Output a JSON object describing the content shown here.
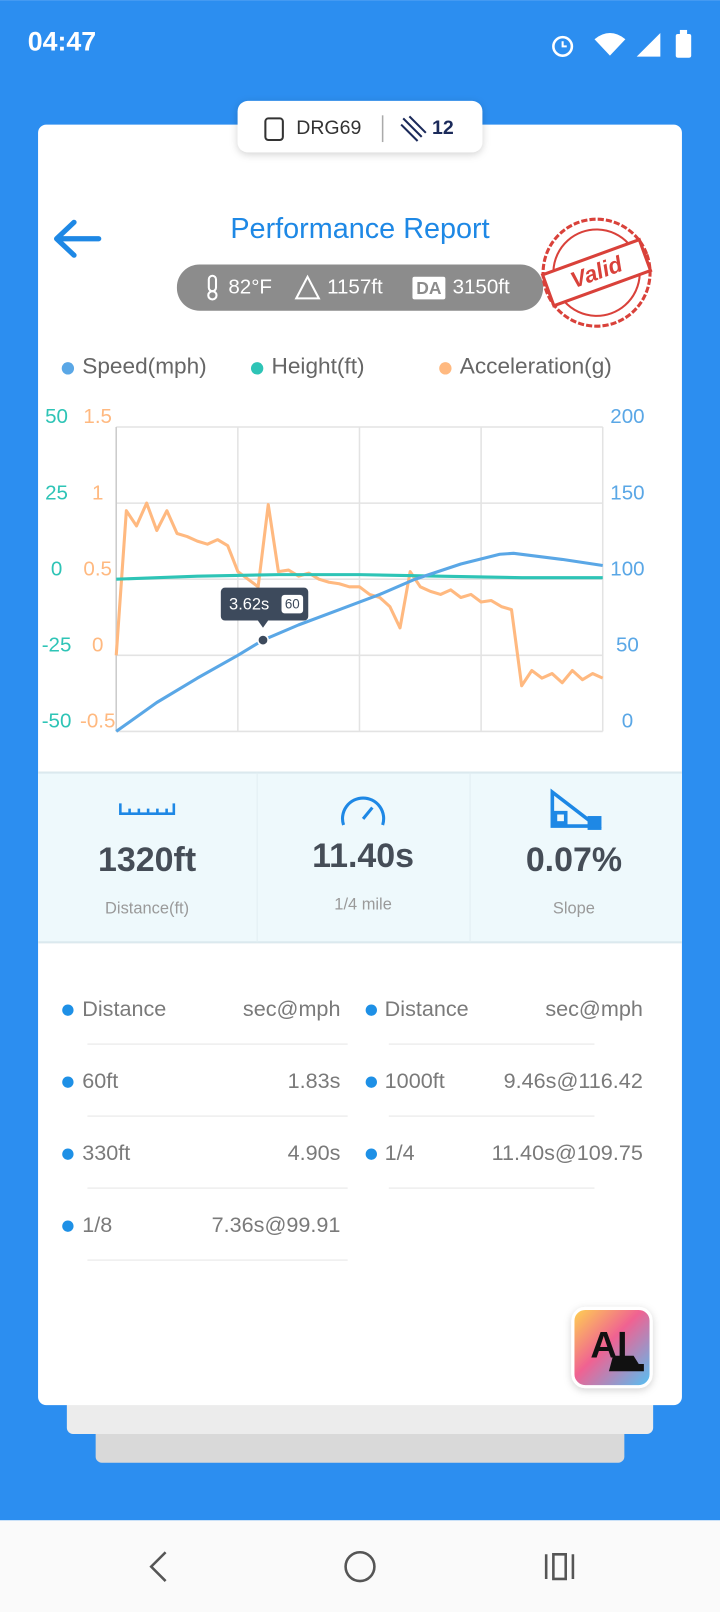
{
  "status_bar": {
    "time": "04:47"
  },
  "device": {
    "name": "DRG69",
    "satellites": 12
  },
  "header": {
    "title": "Performance Report",
    "stamp": "Valid"
  },
  "conditions": {
    "temperature": "82°F",
    "altitude": "1157ft",
    "da_label": "DA",
    "density_altitude": "3150ft"
  },
  "chart_data": {
    "type": "line",
    "xlim": [
      0,
      12
    ],
    "ylim": [
      -50,
      50
    ],
    "yticks": [
      -50,
      -25,
      0,
      25,
      50
    ],
    "y2lim": [
      0,
      200
    ],
    "y2ticks": [
      0,
      50,
      100,
      150,
      200
    ],
    "y3lim": [
      -0.5,
      1.5
    ],
    "y3ticks": [
      -0.5,
      0,
      0.5,
      1,
      1.5
    ],
    "grid": true,
    "series": [
      {
        "name": "Speed(mph)",
        "color": "#5aa7e6",
        "axis": "y2",
        "x": [
          0,
          1,
          2,
          3,
          3.62,
          4.5,
          5.5,
          6.5,
          7.36,
          8.5,
          9.46,
          9.8,
          11,
          12
        ],
        "values": [
          0,
          19,
          35,
          50,
          60,
          70,
          80,
          90,
          99.9,
          110,
          116.4,
          117,
          113,
          109
        ]
      },
      {
        "name": "Height(ft)",
        "color": "#2ec4b6",
        "x": [
          0,
          2,
          4,
          6,
          8,
          10,
          12
        ],
        "values": [
          0,
          1,
          1.5,
          1.5,
          1,
          0.5,
          0.5
        ]
      },
      {
        "name": "Acceleration(g)",
        "color": "#ffb980",
        "axis": "y3",
        "x": [
          0,
          0.25,
          0.5,
          0.75,
          1,
          1.25,
          1.5,
          1.75,
          2,
          2.25,
          2.5,
          2.75,
          3,
          3.25,
          3.5,
          3.75,
          4,
          4.25,
          4.5,
          4.75,
          5,
          5.25,
          5.5,
          5.75,
          6,
          6.25,
          6.5,
          6.75,
          7,
          7.25,
          7.5,
          7.75,
          8,
          8.25,
          8.5,
          8.75,
          9,
          9.25,
          9.5,
          9.75,
          10,
          10.25,
          10.5,
          10.75,
          11,
          11.25,
          11.5,
          11.75,
          12
        ],
        "values": [
          0,
          0.95,
          0.85,
          1.0,
          0.82,
          0.95,
          0.8,
          0.78,
          0.75,
          0.73,
          0.76,
          0.72,
          0.55,
          0.5,
          0.45,
          0.99,
          0.55,
          0.56,
          0.52,
          0.54,
          0.5,
          0.48,
          0.47,
          0.45,
          0.45,
          0.4,
          0.38,
          0.32,
          0.18,
          0.55,
          0.45,
          0.42,
          0.4,
          0.43,
          0.38,
          0.4,
          0.35,
          0.36,
          0.32,
          0.3,
          -0.2,
          -0.1,
          -0.15,
          -0.12,
          -0.18,
          -0.1,
          -0.16,
          -0.12,
          -0.15
        ]
      }
    ],
    "tooltip": {
      "x": 3.62,
      "label": "3.62s"
    }
  },
  "summary": [
    {
      "value": "1320ft",
      "label": "Distance(ft)"
    },
    {
      "value": "11.40s",
      "label": "1/4 mile"
    },
    {
      "value": "0.07%",
      "label": "Slope"
    }
  ],
  "splits": {
    "headers": [
      "Distance",
      "sec@mph"
    ],
    "left": [
      [
        "60ft",
        "1.83s"
      ],
      [
        "330ft",
        "4.90s"
      ],
      [
        "1/8",
        "7.36s@99.91"
      ]
    ],
    "right": [
      [
        "1000ft",
        "9.46s@116.42"
      ],
      [
        "1/4",
        "11.40s@109.75"
      ]
    ]
  },
  "ai_button": "AI"
}
